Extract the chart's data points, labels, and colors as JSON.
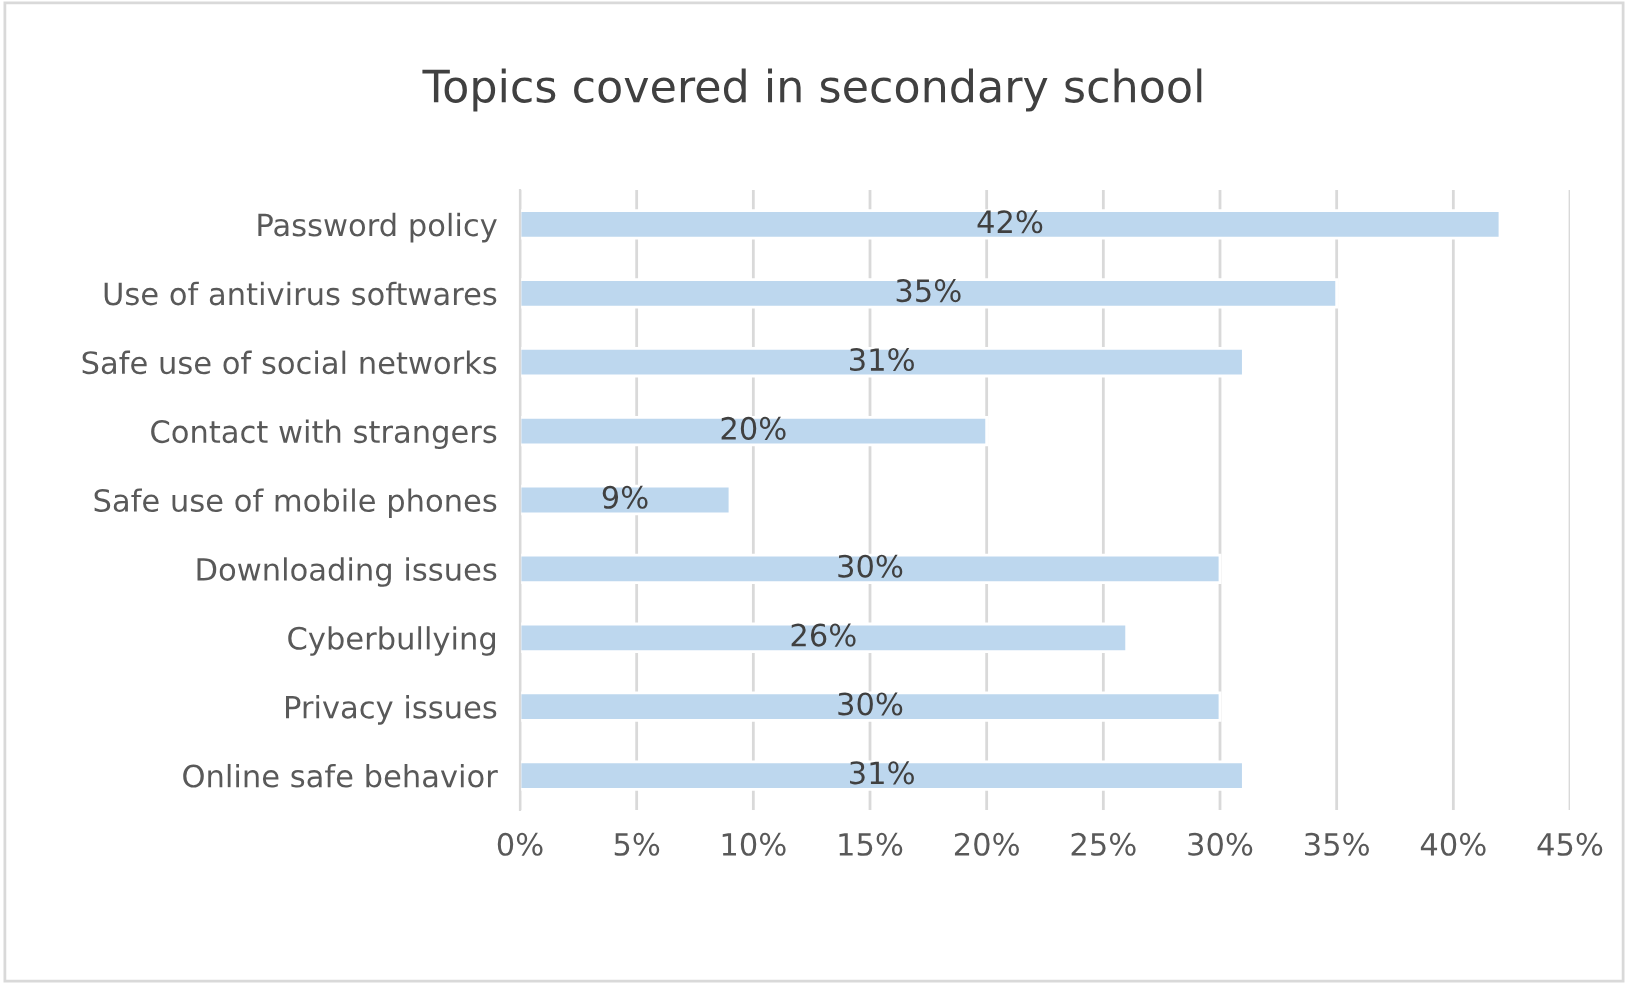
{
  "chart_data": {
    "type": "bar",
    "orientation": "horizontal",
    "title": "Topics covered in secondary school",
    "categories": [
      "Password policy",
      "Use of antivirus softwares",
      "Safe use of social networks",
      "Contact with strangers",
      "Safe use of mobile phones",
      "Downloading issues",
      "Cyberbullying",
      "Privacy issues",
      "Online safe behavior"
    ],
    "values": [
      42,
      35,
      31,
      20,
      9,
      30,
      26,
      30,
      31
    ],
    "value_labels": [
      "42%",
      "35%",
      "31%",
      "20%",
      "9%",
      "30%",
      "26%",
      "30%",
      "31%"
    ],
    "color": "#bdd7ee",
    "xlim": [
      0,
      45
    ],
    "xticks": [
      {
        "value": 0,
        "label": "0%"
      },
      {
        "value": 5,
        "label": "5%"
      },
      {
        "value": 10,
        "label": "10%"
      },
      {
        "value": 15,
        "label": "15%"
      },
      {
        "value": 20,
        "label": "20%"
      },
      {
        "value": 25,
        "label": "25%"
      },
      {
        "value": 30,
        "label": "30%"
      },
      {
        "value": 35,
        "label": "35%"
      },
      {
        "value": 40,
        "label": "40%"
      },
      {
        "value": 45,
        "label": "45%"
      }
    ],
    "grid": "x",
    "legend": false
  }
}
